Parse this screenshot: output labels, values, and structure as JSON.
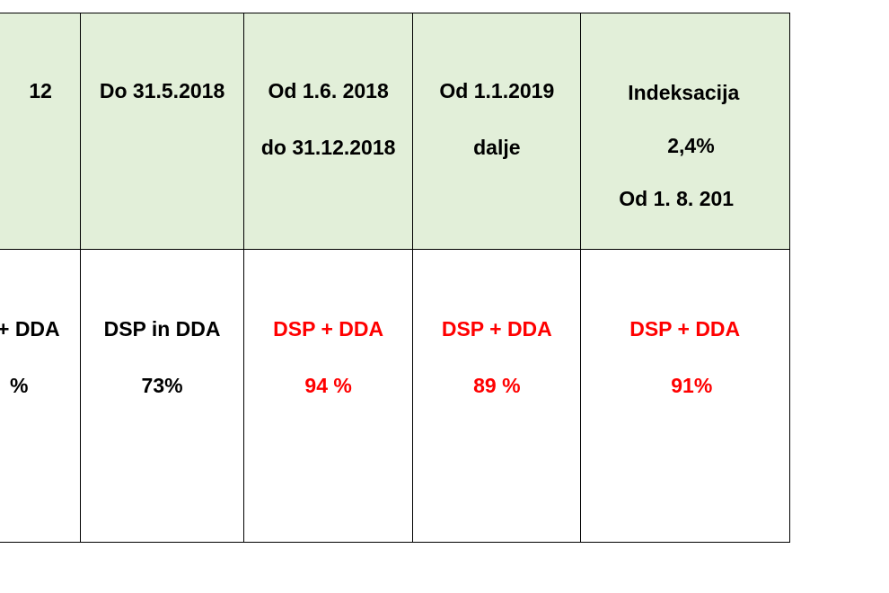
{
  "columns": [
    {
      "header_lines": [
        "12"
      ],
      "value_label": "+ DDA",
      "value_percent": "%",
      "value_color": "#000000"
    },
    {
      "header_lines": [
        "Do 31.5.2018"
      ],
      "value_label": "DSP in DDA",
      "value_percent": "73%",
      "value_color": "#000000"
    },
    {
      "header_lines": [
        "Od 1.6. 2018",
        "do 31.12.2018"
      ],
      "value_label": "DSP + DDA",
      "value_percent": "94 %",
      "value_color": "#ff0000"
    },
    {
      "header_lines": [
        "Od 1.1.2019",
        "dalje"
      ],
      "value_label": "DSP + DDA",
      "value_percent": "89 %",
      "value_color": "#ff0000"
    },
    {
      "header_lines": [
        "Indeksacija",
        "2,4%",
        "Od 1. 8. 201"
      ],
      "value_label": "DSP + DDA",
      "value_percent": "91%",
      "value_color": "#ff0000"
    }
  ],
  "colors": {
    "header_background": "#e2efd9",
    "border": "#000000",
    "highlight_text": "#ff0000"
  }
}
